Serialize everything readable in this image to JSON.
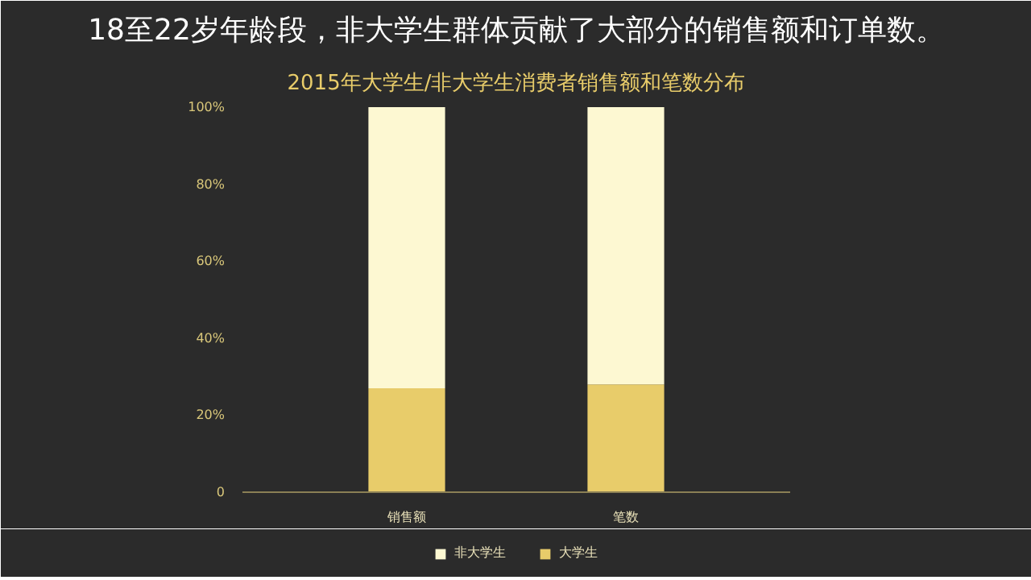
{
  "chart_data": {
    "type": "bar",
    "title": "18至22岁年龄段，非大学生群体贡献了大部分的销售额和订单数。",
    "subtitle": "2015年大学生/非大学生消费者销售额和笔数分布",
    "categories": [
      "销售额",
      "笔数"
    ],
    "stacked": true,
    "series": [
      {
        "name": "大学生",
        "color": "#e8cc6a",
        "values": [
          27,
          28
        ]
      },
      {
        "name": "非大学生",
        "color": "#fdf8d2",
        "values": [
          73,
          72
        ]
      }
    ],
    "ylim": [
      0,
      100
    ],
    "yticks": [
      0,
      {
        "value": 20,
        "label": "20%"
      },
      {
        "value": 40,
        "label": "40%"
      },
      {
        "value": 60,
        "label": "60%"
      },
      {
        "value": 80,
        "label": "80%"
      },
      {
        "value": 100,
        "label": "100%"
      }
    ],
    "grid": false,
    "legend": "bottom"
  }
}
